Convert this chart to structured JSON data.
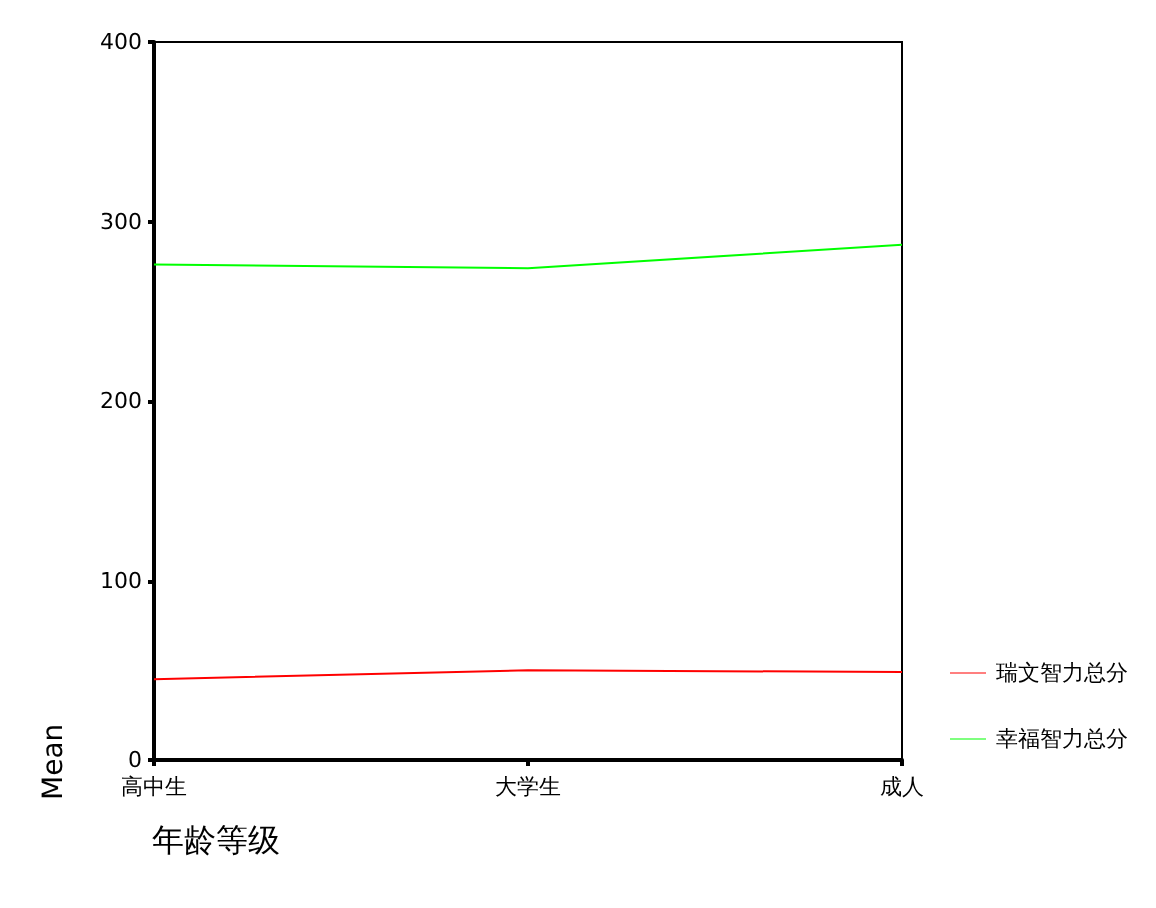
{
  "chart_data": {
    "type": "line",
    "xlabel": "年龄等级",
    "ylabel": "Mean",
    "categories": [
      "高中生",
      "大学生",
      "成人"
    ],
    "series": [
      {
        "name": "瑞文智力总分",
        "color": "#ff0000",
        "values": [
          45,
          50,
          49
        ]
      },
      {
        "name": "幸福智力总分",
        "color": "#00ff00",
        "values": [
          276,
          274,
          287
        ]
      }
    ],
    "ylim": [
      0,
      400
    ],
    "yticks": [
      0,
      100,
      200,
      300,
      400
    ],
    "grid": false,
    "legend": "right",
    "marker": "none",
    "line_style": "solid"
  }
}
